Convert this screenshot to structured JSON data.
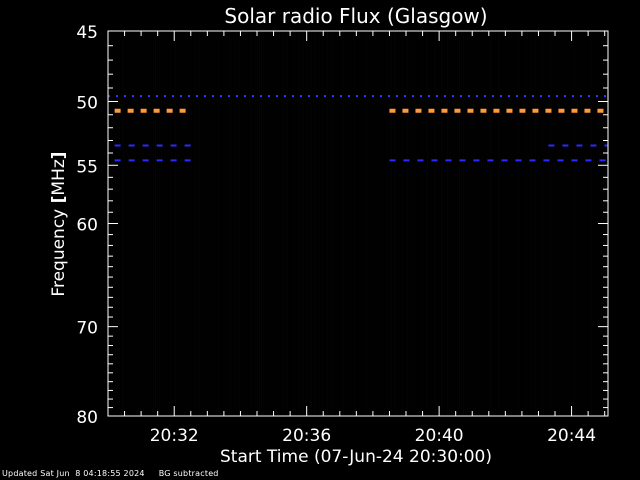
{
  "chart_data": {
    "type": "heatmap",
    "title": "Solar radio Flux (Glasgow)",
    "xlabel": "Start Time (07-Jun-24 20:30:00)",
    "ylabel_text": "Frequency ",
    "ylabel_unit": "MHz",
    "x_unit": "minutes after 20:30:00",
    "xlim": [
      0,
      15.1
    ],
    "ylim": [
      45,
      80
    ],
    "y_scale": "log",
    "x_ticks": [
      {
        "value": 2,
        "label": "20:32"
      },
      {
        "value": 6,
        "label": "20:36"
      },
      {
        "value": 10,
        "label": "20:40"
      },
      {
        "value": 14,
        "label": "20:44"
      }
    ],
    "y_ticks": [
      {
        "value": 45,
        "label": "45"
      },
      {
        "value": 50,
        "label": "50"
      },
      {
        "value": 55,
        "label": "55"
      },
      {
        "value": 60,
        "label": "60"
      },
      {
        "value": 70,
        "label": "70"
      },
      {
        "value": 80,
        "label": "80"
      }
    ],
    "y_minor_ticks": [
      46,
      47,
      48,
      49,
      51,
      52,
      53,
      54,
      56,
      57,
      58,
      59,
      61,
      62,
      63,
      64,
      65,
      66,
      67,
      68,
      69,
      71,
      72,
      73,
      74,
      75,
      76,
      77,
      78,
      79
    ],
    "x_minor_step": 0.5,
    "background_color": "#000000",
    "emission_bands": [
      {
        "freq": 49.6,
        "segments": [
          [
            0,
            15.1
          ]
        ],
        "level": "low",
        "color": "#3a3aff"
      },
      {
        "freq": 50.7,
        "segments": [
          [
            0.2,
            2.5
          ],
          [
            8.5,
            15.1
          ]
        ],
        "level": "high",
        "color": "#ff9a3c"
      },
      {
        "freq": 53.4,
        "segments": [
          [
            0.2,
            2.5
          ],
          [
            13.3,
            15.1
          ]
        ],
        "level": "low",
        "color": "#2a2aff"
      },
      {
        "freq": 54.6,
        "segments": [
          [
            0.2,
            2.5
          ],
          [
            8.5,
            15.1
          ]
        ],
        "level": "low",
        "color": "#2a2aff"
      }
    ]
  },
  "footer": {
    "updated": "Updated Sat Jun  8 04:18:55 2024",
    "mode": "BG subtracted"
  }
}
